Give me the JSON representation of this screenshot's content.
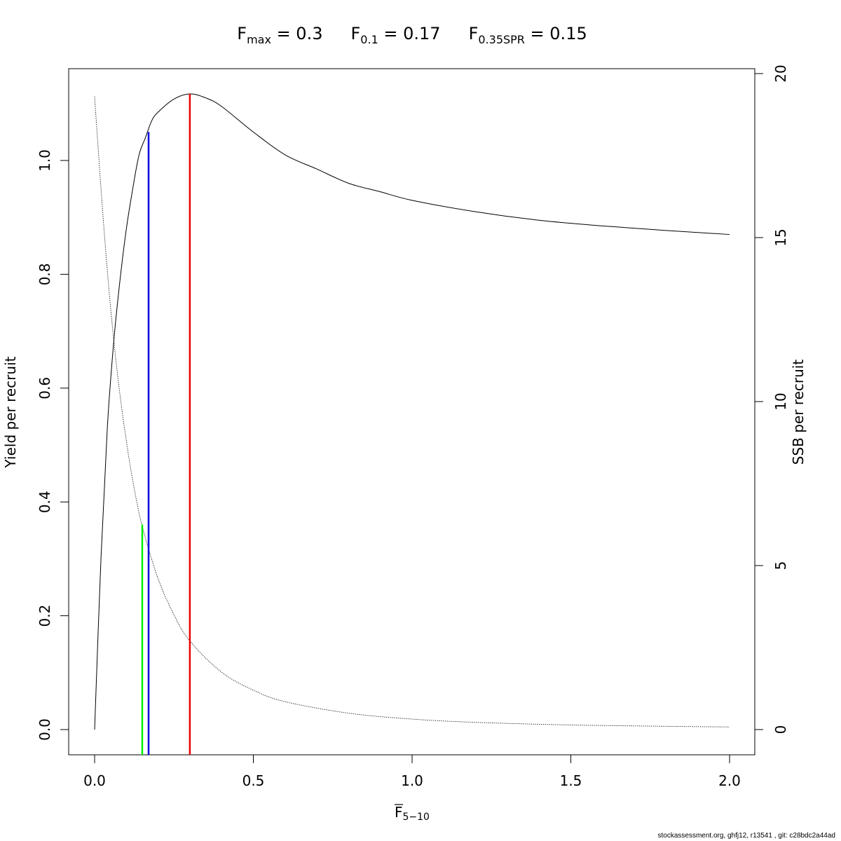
{
  "title_parts": {
    "fmax_main": "F",
    "fmax_sub": "max",
    "fmax_val": " = 0.3",
    "f01_main": "F",
    "f01_sub": "0.1",
    "f01_val": " = 0.17",
    "fspr_main": "F",
    "fspr_sub": "0.35SPR",
    "fspr_val": " = 0.15"
  },
  "xlabel": {
    "main": "F",
    "sub": "5−10"
  },
  "footer": "stockassessment.org, ghfj12, r13541 , git: c28bdc2a44ad",
  "chart_data": {
    "type": "line",
    "title": "Fmax = 0.3   F0.1 = 0.17   F0.35SPR = 0.15",
    "xlabel": "F̅5−10",
    "ylabel": "Yield per recruit",
    "y2label": "SSB per recruit",
    "xlim": [
      0,
      2
    ],
    "ylim": [
      0,
      1.117
    ],
    "y2lim": [
      0,
      20
    ],
    "xticks": [
      "0.0",
      "0.5",
      "1.0",
      "1.5",
      "2.0"
    ],
    "yticks": [
      "0.0",
      "0.2",
      "0.4",
      "0.6",
      "0.8",
      "1.0"
    ],
    "y2ticks": [
      "0",
      "5",
      "10",
      "15",
      "20"
    ],
    "grid": false,
    "series": [
      {
        "name": "Yield per recruit",
        "axis": "left",
        "style": "solid",
        "color": "#000000",
        "x": [
          0,
          0.02,
          0.04,
          0.06,
          0.08,
          0.1,
          0.12,
          0.14,
          0.16,
          0.18,
          0.2,
          0.25,
          0.3,
          0.35,
          0.4,
          0.5,
          0.6,
          0.7,
          0.8,
          0.9,
          1.0,
          1.2,
          1.4,
          1.6,
          1.8,
          2.0
        ],
        "y": [
          0,
          0.3,
          0.53,
          0.68,
          0.79,
          0.88,
          0.95,
          1.01,
          1.04,
          1.07,
          1.085,
          1.108,
          1.117,
          1.11,
          1.095,
          1.05,
          1.01,
          0.985,
          0.96,
          0.945,
          0.93,
          0.91,
          0.895,
          0.885,
          0.877,
          0.87
        ]
      },
      {
        "name": "SSB per recruit",
        "axis": "right",
        "style": "dotted",
        "color": "#000000",
        "x": [
          0,
          0.02,
          0.04,
          0.06,
          0.08,
          0.1,
          0.12,
          0.15,
          0.2,
          0.25,
          0.3,
          0.4,
          0.5,
          0.6,
          0.8,
          1.0,
          1.2,
          1.5,
          1.8,
          2.0
        ],
        "y": [
          19.3,
          16.5,
          14.0,
          11.9,
          10.2,
          8.8,
          7.6,
          6.2,
          4.6,
          3.5,
          2.7,
          1.75,
          1.2,
          0.85,
          0.5,
          0.32,
          0.22,
          0.14,
          0.1,
          0.08
        ]
      }
    ],
    "reference_lines": [
      {
        "name": "F0.35SPR",
        "x": 0.15,
        "y": 0.36,
        "color": "#00ee00"
      },
      {
        "name": "F0.1",
        "x": 0.17,
        "y": 1.05,
        "color": "#0000dd"
      },
      {
        "name": "Fmax",
        "x": 0.3,
        "y": 1.117,
        "color": "#ee0000"
      }
    ]
  }
}
